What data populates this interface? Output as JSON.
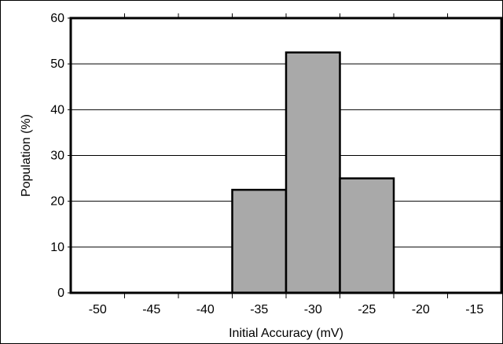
{
  "chart_data": {
    "type": "bar",
    "title": "",
    "xlabel": "Initial Accuracy (mV)",
    "ylabel": "Population (%)",
    "x_ticks": [
      "-50",
      "-45",
      "-40",
      "-35",
      "-30",
      "-25",
      "-20",
      "-15"
    ],
    "y_ticks": [
      "0",
      "10",
      "20",
      "30",
      "40",
      "50",
      "60"
    ],
    "xlim": [
      -52.5,
      -12.5
    ],
    "ylim": [
      0,
      60
    ],
    "grid": "horizontal",
    "legend": "none",
    "bar_color": "#a9a9a9",
    "bin_width": 5,
    "bins": [
      {
        "center": -35,
        "value": 22.5
      },
      {
        "center": -30,
        "value": 52.5
      },
      {
        "center": -25,
        "value": 25.0
      }
    ]
  }
}
